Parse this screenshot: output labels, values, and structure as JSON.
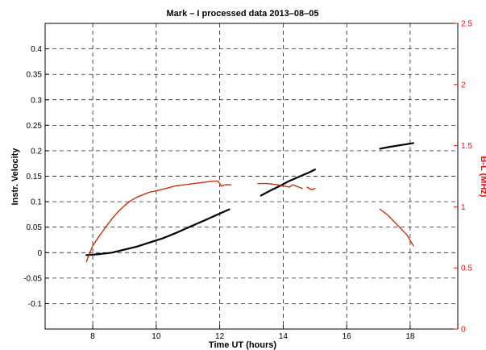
{
  "chart_data": {
    "type": "line",
    "title": "Mark – I processed data   2013–08–05",
    "xlabel": "Time UT (hours)",
    "ylabel": "Instr. Velocity",
    "y2label": "B-L (MHz)",
    "xlim": [
      6.5,
      19.5
    ],
    "ylim": [
      -0.15,
      0.45
    ],
    "y2lim": [
      0,
      2.5
    ],
    "xticks": [
      8,
      10,
      12,
      14,
      16,
      18
    ],
    "yticks": [
      -0.1,
      -0.05,
      0,
      0.05,
      0.1,
      0.15,
      0.2,
      0.25,
      0.3,
      0.35,
      0.4
    ],
    "ytick_labels": [
      "-0.1",
      "-0.05",
      "0",
      "0.05",
      "0.1",
      "0.15",
      "0.2",
      "0.25",
      "0.3",
      "0.35",
      "0.4"
    ],
    "y2ticks": [
      0,
      0.5,
      1,
      1.5,
      2,
      2.5
    ],
    "y2tick_labels": [
      "0",
      "0.5",
      "1",
      "1.5",
      "2",
      "2.5"
    ],
    "grid": true,
    "colors": {
      "velocity": "#000000",
      "bl": "#cc3300",
      "right_axis": "#ff0000"
    },
    "series": [
      {
        "axis": "left",
        "segments": [
          {
            "x": [
              7.8,
              8.2,
              8.6,
              9.0,
              9.4,
              9.8,
              10.2,
              10.6,
              11.0,
              11.4,
              11.8,
              12.3
            ],
            "y": [
              -0.005,
              -0.003,
              0.0,
              0.006,
              0.012,
              0.02,
              0.028,
              0.038,
              0.049,
              0.06,
              0.071,
              0.085
            ]
          },
          {
            "x": [
              13.3,
              13.6,
              13.9,
              14.2,
              14.5,
              14.8,
              15.0
            ],
            "y": [
              0.112,
              0.122,
              0.131,
              0.141,
              0.149,
              0.157,
              0.163
            ]
          },
          {
            "x": [
              17.05,
              17.3,
              17.6,
              17.9,
              18.1
            ],
            "y": [
              0.204,
              0.207,
              0.21,
              0.213,
              0.215
            ]
          }
        ]
      },
      {
        "axis": "right",
        "segments": [
          {
            "x": [
              7.8,
              7.9,
              8.0,
              8.2,
              8.4,
              8.6,
              8.8,
              9.0,
              9.2,
              9.4,
              9.6,
              9.8,
              10.0,
              10.3,
              10.6,
              10.9,
              11.2,
              11.5,
              11.8,
              11.95,
              12.05,
              12.2,
              12.35
            ],
            "y": [
              0.55,
              0.62,
              0.68,
              0.76,
              0.83,
              0.9,
              0.96,
              1.01,
              1.05,
              1.08,
              1.1,
              1.12,
              1.13,
              1.15,
              1.17,
              1.18,
              1.19,
              1.2,
              1.21,
              1.21,
              1.17,
              1.18,
              1.18
            ]
          },
          {
            "x": [
              13.2,
              13.5,
              13.8,
              14.0,
              14.2,
              14.3,
              14.5,
              14.6
            ],
            "y": [
              1.19,
              1.19,
              1.18,
              1.17,
              1.16,
              1.18,
              1.16,
              1.15
            ]
          },
          {
            "x": [
              14.75,
              14.9,
              15.0
            ],
            "y": [
              1.16,
              1.14,
              1.15
            ]
          },
          {
            "x": [
              17.05,
              17.3,
              17.6,
              17.9,
              18.1
            ],
            "y": [
              0.98,
              0.93,
              0.85,
              0.77,
              0.68
            ]
          }
        ]
      }
    ]
  }
}
